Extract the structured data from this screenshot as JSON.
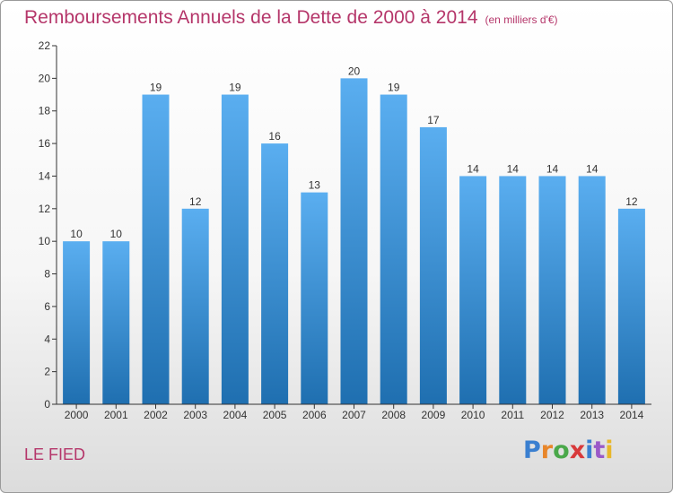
{
  "title": "Remboursements Annuels de la Dette de 2000 à 2014",
  "subtitle": "(en milliers d'€)",
  "commune": "LE FIED",
  "logo": "Proxiti",
  "colors": {
    "title": "#b5366a",
    "bar_top": "#5aaef0",
    "bar_bottom": "#1f6fb0",
    "axis": "#333333"
  },
  "chart_data": {
    "type": "bar",
    "title": "Remboursements Annuels de la Dette de 2000 à 2014",
    "subtitle": "(en milliers d'€)",
    "categories": [
      "2000",
      "2001",
      "2002",
      "2003",
      "2004",
      "2005",
      "2006",
      "2007",
      "2008",
      "2009",
      "2010",
      "2011",
      "2012",
      "2013",
      "2014"
    ],
    "values": [
      10,
      10,
      19,
      12,
      19,
      16,
      13,
      20,
      19,
      17,
      14,
      14,
      14,
      14,
      12
    ],
    "ylim": [
      0,
      22
    ],
    "yticks": [
      0,
      2,
      4,
      6,
      8,
      10,
      12,
      14,
      16,
      18,
      20,
      22
    ],
    "grid": false,
    "legend": "none"
  }
}
